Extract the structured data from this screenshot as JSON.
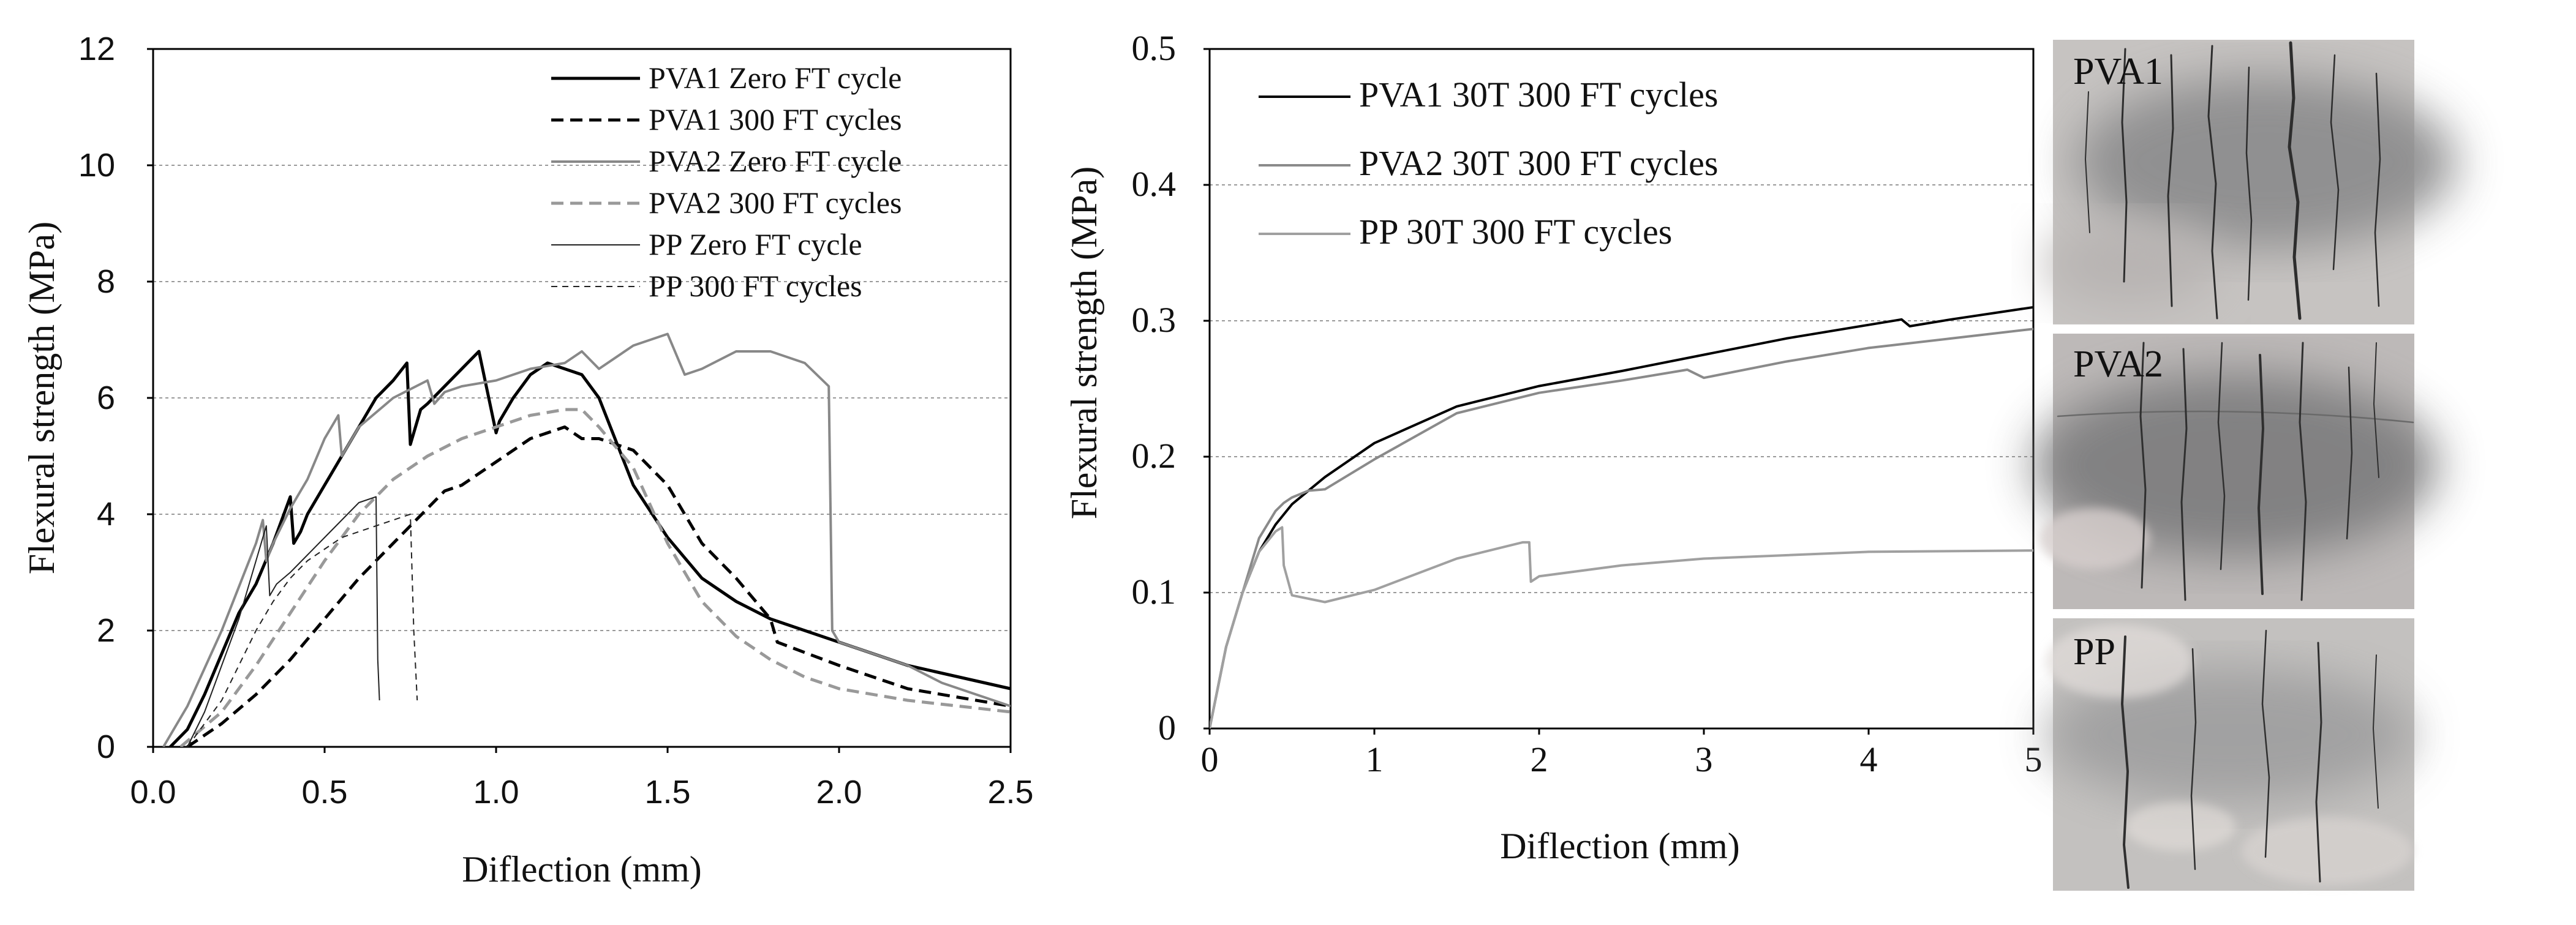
{
  "chart_data": [
    {
      "type": "line",
      "xlabel": "Diflection (mm)",
      "ylabel": "Flexural strength (MPa)",
      "xlim": [
        0,
        2.5
      ],
      "ylim": [
        0,
        12
      ],
      "xticks": [
        "0.0",
        "0.5",
        "1.0",
        "1.5",
        "2.0",
        "2.5"
      ],
      "yticks": [
        "0",
        "2",
        "4",
        "6",
        "8",
        "10",
        "12"
      ],
      "grid": "horizontal dotted",
      "legend_position": "top-right",
      "series": [
        {
          "name": "PVA1 Zero FT cycle",
          "color": "#000000",
          "style": "solid",
          "weight": "thick",
          "x": [
            0.05,
            0.1,
            0.15,
            0.2,
            0.25,
            0.3,
            0.35,
            0.4,
            0.41,
            0.43,
            0.45,
            0.5,
            0.55,
            0.6,
            0.65,
            0.7,
            0.74,
            0.75,
            0.78,
            0.8,
            0.85,
            0.9,
            0.95,
            1.0,
            1.01,
            1.05,
            1.1,
            1.15,
            1.2,
            1.25,
            1.3,
            1.4,
            1.5,
            1.6,
            1.7,
            1.8,
            2.0,
            2.2,
            2.5
          ],
          "y": [
            0,
            0.3,
            0.9,
            1.6,
            2.3,
            2.8,
            3.5,
            4.3,
            3.5,
            3.7,
            4.0,
            4.5,
            5.0,
            5.5,
            6.0,
            6.3,
            6.6,
            5.2,
            5.8,
            5.9,
            6.2,
            6.5,
            6.8,
            5.4,
            5.6,
            6.0,
            6.4,
            6.6,
            6.5,
            6.4,
            6.0,
            4.5,
            3.6,
            2.9,
            2.5,
            2.2,
            1.8,
            1.4,
            1.0
          ]
        },
        {
          "name": "PVA1 300 FT cycles",
          "color": "#000000",
          "style": "dashed",
          "weight": "thick",
          "x": [
            0.1,
            0.2,
            0.3,
            0.4,
            0.5,
            0.6,
            0.7,
            0.8,
            0.85,
            0.9,
            1.0,
            1.1,
            1.2,
            1.25,
            1.3,
            1.4,
            1.5,
            1.6,
            1.7,
            1.8,
            1.82,
            2.0,
            2.2,
            2.5
          ],
          "y": [
            0,
            0.4,
            0.9,
            1.5,
            2.2,
            2.9,
            3.5,
            4.1,
            4.4,
            4.5,
            4.9,
            5.3,
            5.5,
            5.3,
            5.3,
            5.1,
            4.5,
            3.5,
            2.9,
            2.2,
            1.8,
            1.4,
            1.0,
            0.7
          ]
        },
        {
          "name": "PVA2 Zero FT cycle",
          "color": "#888888",
          "style": "solid",
          "weight": "medium",
          "x": [
            0.03,
            0.1,
            0.2,
            0.3,
            0.32,
            0.33,
            0.35,
            0.4,
            0.45,
            0.5,
            0.54,
            0.55,
            0.6,
            0.7,
            0.8,
            0.82,
            0.85,
            0.9,
            1.0,
            1.1,
            1.2,
            1.25,
            1.3,
            1.4,
            1.5,
            1.55,
            1.6,
            1.7,
            1.8,
            1.9,
            1.97,
            1.98,
            2.0,
            2.1,
            2.2,
            2.3,
            2.5
          ],
          "y": [
            0,
            0.7,
            2.0,
            3.5,
            3.9,
            3.2,
            3.5,
            4.1,
            4.6,
            5.3,
            5.7,
            5.0,
            5.5,
            6.0,
            6.3,
            5.9,
            6.1,
            6.2,
            6.3,
            6.5,
            6.6,
            6.8,
            6.5,
            6.9,
            7.1,
            6.4,
            6.5,
            6.8,
            6.8,
            6.6,
            6.2,
            2.0,
            1.8,
            1.6,
            1.4,
            1.1,
            0.7
          ]
        },
        {
          "name": "PVA2 300 FT cycles",
          "color": "#999999",
          "style": "dashed",
          "weight": "thick",
          "x": [
            0.08,
            0.2,
            0.3,
            0.4,
            0.5,
            0.6,
            0.7,
            0.8,
            0.9,
            1.0,
            1.1,
            1.2,
            1.25,
            1.3,
            1.4,
            1.5,
            1.6,
            1.7,
            1.8,
            1.9,
            2.0,
            2.2,
            2.5
          ],
          "y": [
            0,
            0.6,
            1.4,
            2.3,
            3.2,
            4.0,
            4.6,
            5.0,
            5.3,
            5.5,
            5.7,
            5.8,
            5.8,
            5.5,
            4.8,
            3.5,
            2.5,
            1.9,
            1.5,
            1.2,
            1.0,
            0.8,
            0.6
          ]
        },
        {
          "name": "PP Zero FT cycle",
          "color": "#222222",
          "style": "solid",
          "weight": "thin",
          "x": [
            0.1,
            0.15,
            0.2,
            0.25,
            0.3,
            0.33,
            0.34,
            0.36,
            0.4,
            0.45,
            0.5,
            0.55,
            0.6,
            0.65,
            0.655,
            0.66
          ],
          "y": [
            0,
            0.6,
            1.4,
            2.2,
            3.2,
            3.8,
            2.6,
            2.8,
            3.0,
            3.3,
            3.6,
            3.9,
            4.2,
            4.3,
            1.5,
            0.8
          ]
        },
        {
          "name": "PP 300 FT cycles",
          "color": "#222222",
          "style": "dashed",
          "weight": "thin",
          "x": [
            0.1,
            0.2,
            0.3,
            0.35,
            0.4,
            0.45,
            0.5,
            0.55,
            0.6,
            0.65,
            0.7,
            0.75,
            0.76,
            0.77
          ],
          "y": [
            0,
            0.8,
            2.0,
            2.5,
            2.9,
            3.2,
            3.4,
            3.6,
            3.7,
            3.8,
            3.9,
            4.0,
            2.0,
            0.8
          ]
        }
      ]
    },
    {
      "type": "line",
      "xlabel": "Diflection (mm)",
      "ylabel": "Flexural strength (MPa)",
      "xlim": [
        0,
        5
      ],
      "ylim": [
        0,
        0.5
      ],
      "xticks": [
        "0",
        "1",
        "2",
        "3",
        "4",
        "5"
      ],
      "yticks": [
        "0",
        "0.1",
        "0.2",
        "0.3",
        "0.4",
        "0.5"
      ],
      "grid": "horizontal dotted",
      "legend_position": "top-left",
      "series": [
        {
          "name": "PVA1 30T 300 FT cycles",
          "color": "#000000",
          "style": "solid",
          "weight": "medium",
          "x": [
            0,
            0.1,
            0.2,
            0.3,
            0.4,
            0.5,
            0.7,
            1.0,
            1.5,
            2.0,
            2.5,
            3.0,
            3.5,
            4.0,
            4.2,
            4.25,
            4.5,
            5.0
          ],
          "y": [
            0,
            0.06,
            0.1,
            0.13,
            0.15,
            0.165,
            0.185,
            0.21,
            0.237,
            0.252,
            0.263,
            0.275,
            0.287,
            0.297,
            0.301,
            0.296,
            0.301,
            0.31
          ]
        },
        {
          "name": "PVA2 30T 300 FT cycles",
          "color": "#8a8a8a",
          "style": "solid",
          "weight": "medium",
          "x": [
            0,
            0.1,
            0.2,
            0.3,
            0.4,
            0.45,
            0.5,
            0.6,
            0.7,
            1.0,
            1.5,
            2.0,
            2.5,
            2.9,
            3.0,
            3.5,
            4.0,
            4.5,
            5.0
          ],
          "y": [
            0,
            0.06,
            0.1,
            0.14,
            0.16,
            0.166,
            0.17,
            0.175,
            0.176,
            0.198,
            0.232,
            0.247,
            0.256,
            0.264,
            0.258,
            0.27,
            0.28,
            0.287,
            0.294
          ]
        },
        {
          "name": "PP 30T 300 FT cycles",
          "color": "#a0a0a0",
          "style": "solid",
          "weight": "medium",
          "x": [
            0,
            0.1,
            0.2,
            0.3,
            0.4,
            0.44,
            0.45,
            0.5,
            0.7,
            1.0,
            1.5,
            1.9,
            1.94,
            1.95,
            2.0,
            2.5,
            3.0,
            4.0,
            5.0
          ],
          "y": [
            0,
            0.06,
            0.1,
            0.13,
            0.145,
            0.148,
            0.12,
            0.098,
            0.093,
            0.102,
            0.125,
            0.137,
            0.137,
            0.108,
            0.112,
            0.12,
            0.125,
            0.13,
            0.131
          ]
        }
      ]
    }
  ],
  "photos": [
    {
      "label": "PVA1",
      "tone": "#a9a9a9"
    },
    {
      "label": "PVA2",
      "tone": "#8f8f8f"
    },
    {
      "label": "PP",
      "tone": "#b3b3b3"
    }
  ]
}
